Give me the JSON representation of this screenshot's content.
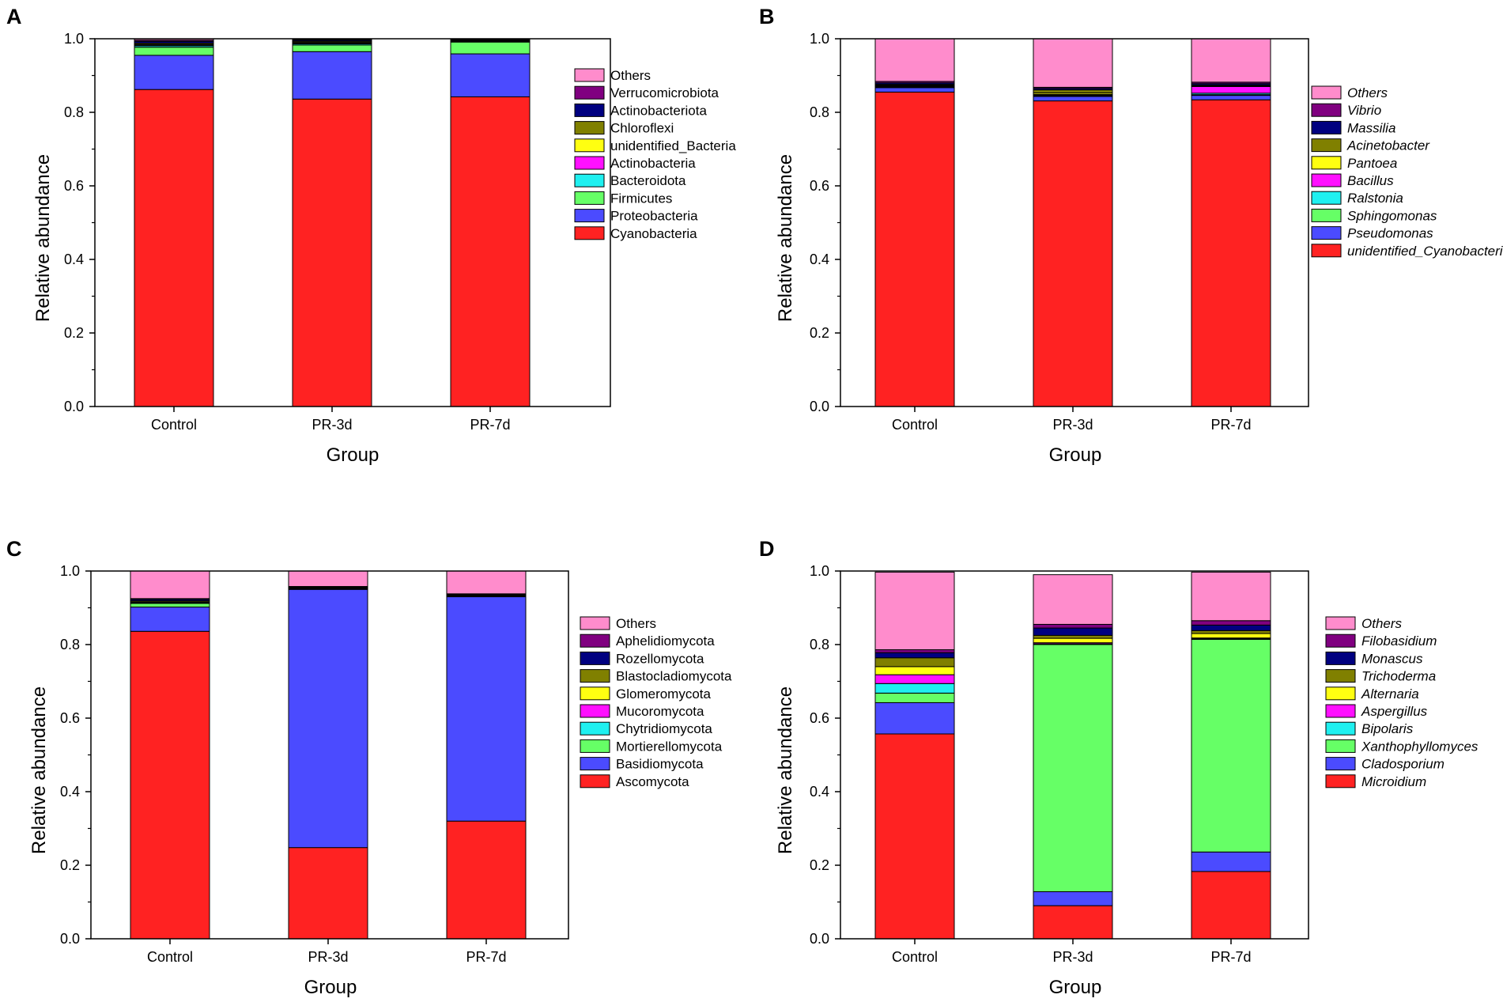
{
  "chart_data": [
    {
      "panel": "A",
      "type": "bar",
      "stacked": true,
      "xlabel": "Group",
      "ylabel": "Relative abundance",
      "ylim": [
        0,
        1.0
      ],
      "yticks": [
        "0.0",
        "0.2",
        "0.4",
        "0.6",
        "0.8",
        "1.0"
      ],
      "categories": [
        "Control",
        "PR-3d",
        "PR-7d"
      ],
      "italic_legend": false,
      "series": [
        {
          "name": "Cyanobacteria",
          "color": "#ff2222",
          "values": [
            0.862,
            0.836,
            0.842
          ]
        },
        {
          "name": "Proteobacteria",
          "color": "#4b4bff",
          "values": [
            0.093,
            0.129,
            0.117
          ]
        },
        {
          "name": "Firmicutes",
          "color": "#66ff66",
          "values": [
            0.022,
            0.018,
            0.032
          ]
        },
        {
          "name": "Bacteroidota",
          "color": "#1ff0f0",
          "values": [
            0.004,
            0.003,
            0.002
          ]
        },
        {
          "name": "Actinobacteria",
          "color": "#ff10ff",
          "values": [
            0.002,
            0.002,
            0.001
          ]
        },
        {
          "name": "unidentified_Bacteria",
          "color": "#ffff11",
          "values": [
            0.002,
            0.002,
            0.001
          ]
        },
        {
          "name": "Chloroflexi",
          "color": "#808000",
          "values": [
            0.003,
            0.003,
            0.001
          ]
        },
        {
          "name": "Actinobacteriota",
          "color": "#000080",
          "values": [
            0.005,
            0.003,
            0.002
          ]
        },
        {
          "name": "Verrucomicrobiota",
          "color": "#800080",
          "values": [
            0.003,
            0.002,
            0.001
          ]
        },
        {
          "name": "Others",
          "color": "#ff8ccc",
          "values": [
            0.004,
            0.002,
            0.001
          ]
        }
      ]
    },
    {
      "panel": "B",
      "type": "bar",
      "stacked": true,
      "xlabel": "Group",
      "ylabel": "Relative abundance",
      "ylim": [
        0,
        1.0
      ],
      "yticks": [
        "0.0",
        "0.2",
        "0.4",
        "0.6",
        "0.8",
        "1.0"
      ],
      "categories": [
        "Control",
        "PR-3d",
        "PR-7d"
      ],
      "italic_legend": true,
      "series": [
        {
          "name": "unidentified_Cyanobacteria",
          "color": "#ff2222",
          "values": [
            0.855,
            0.831,
            0.834
          ]
        },
        {
          "name": "Pseudomonas",
          "color": "#4b4bff",
          "values": [
            0.012,
            0.012,
            0.012
          ]
        },
        {
          "name": "Sphingomonas",
          "color": "#66ff66",
          "values": [
            0.002,
            0.002,
            0.002
          ]
        },
        {
          "name": "Ralstonia",
          "color": "#1ff0f0",
          "values": [
            0.002,
            0.002,
            0.004
          ]
        },
        {
          "name": "Bacillus",
          "color": "#ff10ff",
          "values": [
            0.001,
            0.002,
            0.018
          ]
        },
        {
          "name": "Pantoea",
          "color": "#ffff11",
          "values": [
            0.002,
            0.004,
            0.002
          ]
        },
        {
          "name": "Acinetobacter",
          "color": "#808000",
          "values": [
            0.002,
            0.008,
            0.002
          ]
        },
        {
          "name": "Massilia",
          "color": "#000080",
          "values": [
            0.004,
            0.004,
            0.004
          ]
        },
        {
          "name": "Vibrio",
          "color": "#800080",
          "values": [
            0.004,
            0.003,
            0.004
          ]
        },
        {
          "name": "Others",
          "color": "#ff8ccc",
          "values": [
            0.116,
            0.132,
            0.118
          ]
        }
      ]
    },
    {
      "panel": "C",
      "type": "bar",
      "stacked": true,
      "xlabel": "Group",
      "ylabel": "Relative abundance",
      "ylim": [
        0,
        1.0
      ],
      "yticks": [
        "0.0",
        "0.2",
        "0.4",
        "0.6",
        "0.8",
        "1.0"
      ],
      "categories": [
        "Control",
        "PR-3d",
        "PR-7d"
      ],
      "italic_legend": false,
      "series": [
        {
          "name": "Ascomycota",
          "color": "#ff2222",
          "values": [
            0.836,
            0.248,
            0.32
          ]
        },
        {
          "name": "Basidiomycota",
          "color": "#4b4bff",
          "values": [
            0.066,
            0.702,
            0.61
          ]
        },
        {
          "name": "Mortierellomycota",
          "color": "#66ff66",
          "values": [
            0.01,
            0.002,
            0.001
          ]
        },
        {
          "name": "Chytridiomycota",
          "color": "#1ff0f0",
          "values": [
            0.002,
            0.001,
            0.001
          ]
        },
        {
          "name": "Mucoromycota",
          "color": "#ff10ff",
          "values": [
            0.001,
            0.001,
            0.001
          ]
        },
        {
          "name": "Glomeromycota",
          "color": "#ffff11",
          "values": [
            0.001,
            0.001,
            0.001
          ]
        },
        {
          "name": "Blastocladiomycota",
          "color": "#808000",
          "values": [
            0.003,
            0.001,
            0.001
          ]
        },
        {
          "name": "Rozellomycota",
          "color": "#000080",
          "values": [
            0.004,
            0.001,
            0.002
          ]
        },
        {
          "name": "Aphelidiomycota",
          "color": "#800080",
          "values": [
            0.002,
            0.001,
            0.001
          ]
        },
        {
          "name": "Others",
          "color": "#ff8ccc",
          "values": [
            0.075,
            0.042,
            0.062
          ]
        }
      ]
    },
    {
      "panel": "D",
      "type": "bar",
      "stacked": true,
      "xlabel": "Group",
      "ylabel": "Relative abundance",
      "ylim": [
        0,
        1.0
      ],
      "yticks": [
        "0.0",
        "0.2",
        "0.4",
        "0.6",
        "0.8",
        "1.0"
      ],
      "categories": [
        "Control",
        "PR-3d",
        "PR-7d"
      ],
      "italic_legend": true,
      "series": [
        {
          "name": "Microidium",
          "color": "#ff2222",
          "values": [
            0.557,
            0.09,
            0.183
          ]
        },
        {
          "name": "Cladosporium",
          "color": "#4b4bff",
          "values": [
            0.085,
            0.038,
            0.053
          ]
        },
        {
          "name": "Xanthophyllomyces",
          "color": "#66ff66",
          "values": [
            0.026,
            0.672,
            0.578
          ]
        },
        {
          "name": "Bipolaris",
          "color": "#1ff0f0",
          "values": [
            0.026,
            0.002,
            0.002
          ]
        },
        {
          "name": "Aspergillus",
          "color": "#ff10ff",
          "values": [
            0.024,
            0.003,
            0.002
          ]
        },
        {
          "name": "Alternaria",
          "color": "#ffff11",
          "values": [
            0.022,
            0.012,
            0.012
          ]
        },
        {
          "name": "Trichoderma",
          "color": "#808000",
          "values": [
            0.024,
            0.008,
            0.008
          ]
        },
        {
          "name": "Monascus",
          "color": "#000080",
          "values": [
            0.014,
            0.02,
            0.015
          ]
        },
        {
          "name": "Filobasidium",
          "color": "#800080",
          "values": [
            0.008,
            0.01,
            0.012
          ]
        },
        {
          "name": "Others",
          "color": "#ff8ccc",
          "values": [
            0.211,
            0.135,
            0.132
          ]
        }
      ]
    }
  ]
}
